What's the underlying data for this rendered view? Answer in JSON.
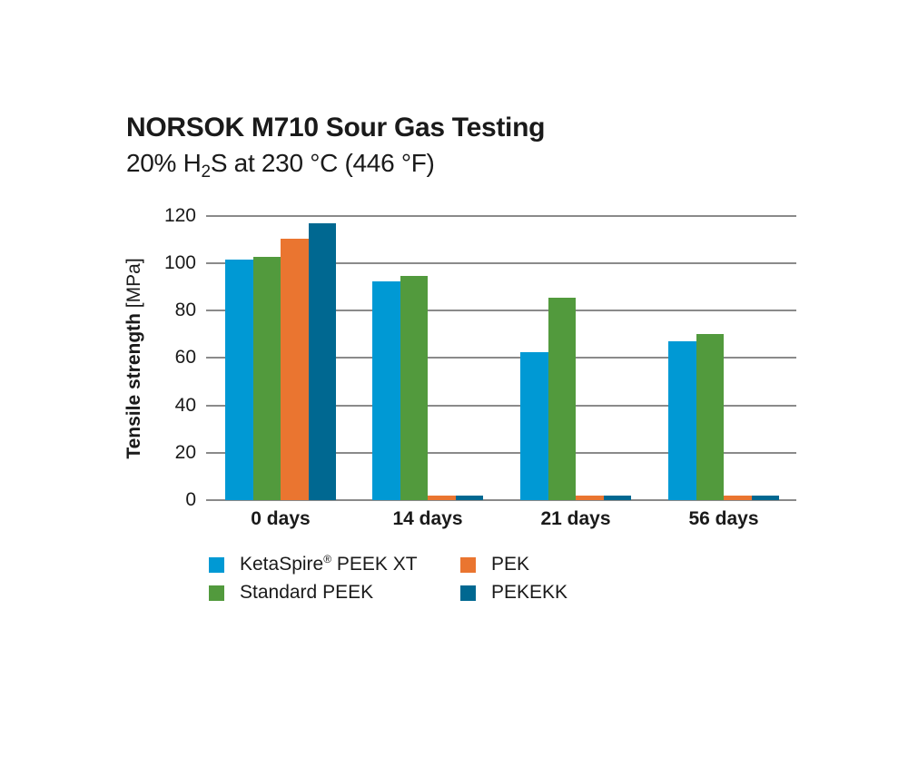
{
  "title": "NORSOK M710 Sour Gas Testing",
  "subtitle": {
    "prefix": "20% H",
    "subscript": "2",
    "suffix": "S at 230 °C (446 °F)"
  },
  "colors": {
    "ketaspire": "#0099d4",
    "standard_peek": "#529a3d",
    "pek": "#ea7530",
    "pekekk": "#006891",
    "grid": "#8a8a8a"
  },
  "chart_data": {
    "type": "bar",
    "title": "NORSOK M710 Sour Gas Testing",
    "subtitle": "20% H2S at 230 °C (446 °F)",
    "xlabel": "",
    "ylabel": "Tensile strength [MPa]",
    "ylim": [
      0,
      120
    ],
    "yticks": [
      0,
      20,
      40,
      60,
      80,
      100,
      120
    ],
    "grid": true,
    "legend_position": "bottom",
    "categories": [
      "0 days",
      "14 days",
      "21 days",
      "56 days"
    ],
    "series": [
      {
        "name": "KetaSpire® PEEK XT",
        "color": "#0099d4",
        "values": [
          101.5,
          92.5,
          62.5,
          67
        ]
      },
      {
        "name": "Standard PEEK",
        "color": "#529a3d",
        "values": [
          102.5,
          94.5,
          85.5,
          70
        ]
      },
      {
        "name": "PEK",
        "color": "#ea7530",
        "values": [
          110.5,
          2,
          2,
          2
        ]
      },
      {
        "name": "PEKEKK",
        "color": "#006891",
        "values": [
          117,
          2,
          2,
          2
        ]
      }
    ]
  },
  "axis": {
    "ylabel_bold": "Tensile strength",
    "ylabel_unit": " [MPa]",
    "yticks": [
      "120",
      "100",
      "80",
      "60",
      "40",
      "20",
      "0"
    ],
    "xticks": [
      "0 days",
      "14 days",
      "21 days",
      "56 days"
    ]
  },
  "legend": {
    "items": [
      {
        "label": "KetaSpire",
        "sup": "®",
        "label_rest": " PEEK XT",
        "color": "#0099d4"
      },
      {
        "label": "Standard PEEK",
        "color": "#529a3d"
      },
      {
        "label": "PEK",
        "color": "#ea7530"
      },
      {
        "label": "PEKEKK",
        "color": "#006891"
      }
    ]
  }
}
